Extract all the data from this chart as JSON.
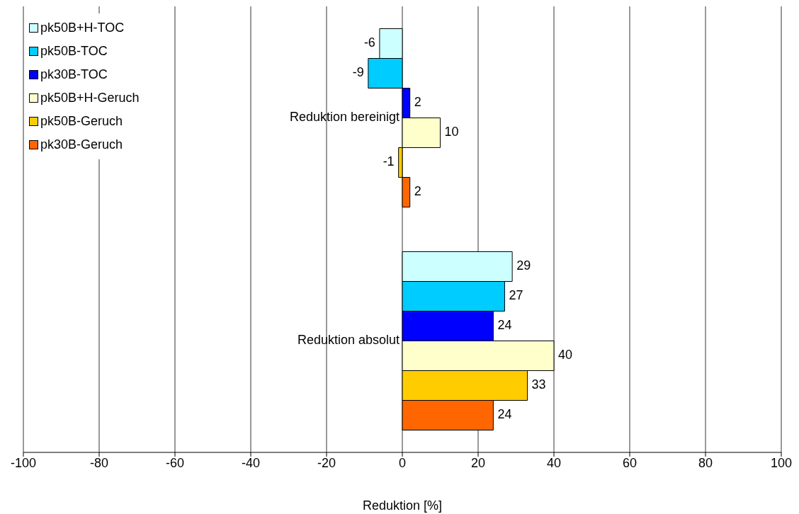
{
  "chart_data": {
    "type": "bar",
    "orientation": "horizontal",
    "xlabel": "Reduktion [%]",
    "categories": [
      "Reduktion bereinigt",
      "Reduktion absolut"
    ],
    "series": [
      {
        "name": "pk50B+H-TOC",
        "color": "#ccffff",
        "values": [
          -6,
          29
        ]
      },
      {
        "name": "pk50B-TOC",
        "color": "#00ccff",
        "values": [
          -9,
          27
        ]
      },
      {
        "name": "pk30B-TOC",
        "color": "#0000ff",
        "values": [
          2,
          24
        ]
      },
      {
        "name": "pk50B+H-Geruch",
        "color": "#ffffcc",
        "values": [
          10,
          40
        ]
      },
      {
        "name": "pk50B-Geruch",
        "color": "#ffcc00",
        "values": [
          -1,
          33
        ]
      },
      {
        "name": "pk30B-Geruch",
        "color": "#ff6600",
        "values": [
          2,
          24
        ]
      }
    ],
    "xlim": [
      -100,
      100
    ],
    "xticks": [
      -100,
      -80,
      -60,
      -40,
      -20,
      0,
      20,
      40,
      60,
      80,
      100
    ],
    "grid": "x",
    "legend": "top left",
    "data_labels": true
  }
}
